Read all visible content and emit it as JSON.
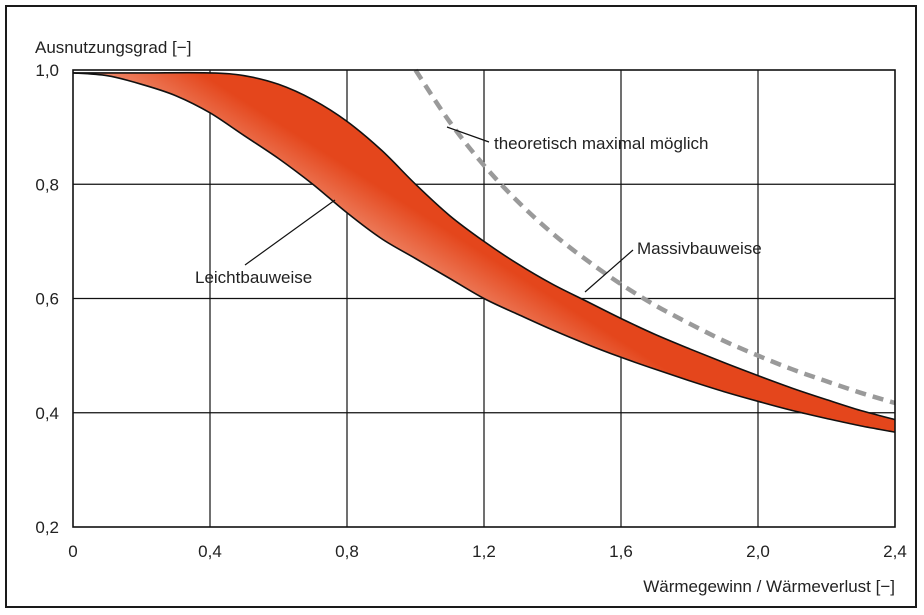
{
  "chart_data": {
    "type": "area",
    "ylabel": "Ausnutzungsgrad  [−]",
    "xlabel": "Wärmegewinn / Wärmeverlust [−]",
    "xlim": [
      0,
      2.4
    ],
    "ylim": [
      0.2,
      1.0
    ],
    "x_ticks": [
      "0",
      "0,4",
      "0,8",
      "1,2",
      "1,6",
      "2,0",
      "2,4"
    ],
    "y_ticks": [
      "0,2",
      "0,4",
      "0,6",
      "0,8",
      "1,0"
    ],
    "grid": true,
    "series": [
      {
        "name": "Massivbauweise",
        "x": [
          0,
          0.2,
          0.4,
          0.5,
          0.6,
          0.7,
          0.8,
          0.9,
          1.0,
          1.1,
          1.2,
          1.3,
          1.4,
          1.5,
          1.6,
          1.7,
          1.8,
          1.9,
          2.0,
          2.1,
          2.2,
          2.3,
          2.4
        ],
        "y": [
          0.995,
          0.995,
          0.995,
          0.99,
          0.975,
          0.948,
          0.91,
          0.86,
          0.8,
          0.745,
          0.7,
          0.66,
          0.625,
          0.595,
          0.565,
          0.537,
          0.512,
          0.488,
          0.465,
          0.443,
          0.423,
          0.404,
          0.388
        ]
      },
      {
        "name": "Leichtbauweise",
        "x": [
          0,
          0.1,
          0.2,
          0.3,
          0.4,
          0.5,
          0.6,
          0.7,
          0.8,
          0.9,
          1.0,
          1.1,
          1.2,
          1.3,
          1.4,
          1.5,
          1.6,
          1.7,
          1.8,
          1.9,
          2.0,
          2.1,
          2.2,
          2.3,
          2.4
        ],
        "y": [
          0.995,
          0.99,
          0.975,
          0.955,
          0.925,
          0.885,
          0.845,
          0.8,
          0.75,
          0.705,
          0.67,
          0.635,
          0.6,
          0.572,
          0.545,
          0.52,
          0.497,
          0.476,
          0.456,
          0.437,
          0.42,
          0.404,
          0.39,
          0.377,
          0.366
        ]
      },
      {
        "name": "theoretisch maximal möglich",
        "x": [
          1.0,
          1.1,
          1.2,
          1.3,
          1.4,
          1.5,
          1.6,
          1.7,
          1.8,
          1.9,
          2.0,
          2.1,
          2.2,
          2.3,
          2.4
        ],
        "y": [
          1.0,
          0.909,
          0.833,
          0.769,
          0.714,
          0.667,
          0.625,
          0.588,
          0.556,
          0.526,
          0.5,
          0.476,
          0.455,
          0.435,
          0.417
        ]
      }
    ],
    "annotations": [
      "theoretisch maximal möglich",
      "Massivbauweise",
      "Leichtbauweise"
    ],
    "colors": {
      "band_dark": "#e4461c",
      "band_light": "#fde3d4",
      "dashed_line": "#9a9a9a",
      "axis": "#111111",
      "grid": "#111111"
    }
  }
}
